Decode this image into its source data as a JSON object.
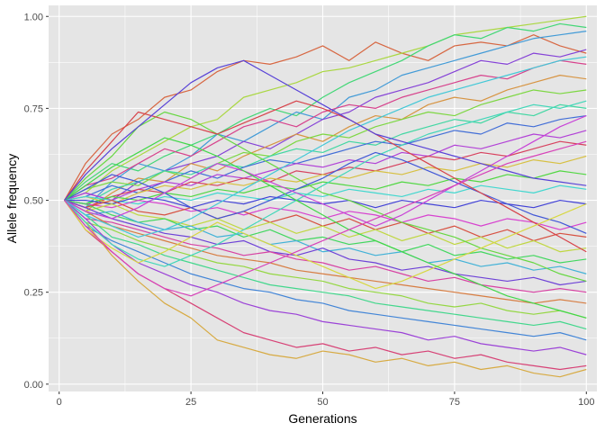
{
  "chart_data": {
    "type": "line",
    "xlabel": "Generations",
    "ylabel": "Allele frequency",
    "xlim": [
      -2,
      102
    ],
    "ylim": [
      -0.02,
      1.03
    ],
    "x_ticks": [
      0,
      25,
      50,
      75,
      100
    ],
    "x_tick_labels": [
      "0",
      "25",
      "50",
      "75",
      "100"
    ],
    "y_ticks": [
      0,
      0.25,
      0.5,
      0.75,
      1
    ],
    "y_tick_labels": [
      "0.00",
      "0.25",
      "0.50",
      "0.75",
      "1.00"
    ],
    "grid": true,
    "legend": "none",
    "x": [
      1,
      5,
      10,
      15,
      20,
      25,
      30,
      35,
      40,
      45,
      50,
      55,
      60,
      65,
      70,
      75,
      80,
      85,
      90,
      95,
      100
    ],
    "panel_background": "#e5e5e5",
    "grid_color": "#ffffff",
    "series": [
      {
        "values": [
          0.5,
          0.6,
          0.68,
          0.72,
          0.78,
          0.8,
          0.85,
          0.88,
          0.87,
          0.89,
          0.92,
          0.88,
          0.93,
          0.9,
          0.88,
          0.92,
          0.93,
          0.92,
          0.95,
          0.92,
          0.9
        ]
      },
      {
        "values": [
          0.5,
          0.52,
          0.58,
          0.62,
          0.66,
          0.7,
          0.72,
          0.78,
          0.8,
          0.82,
          0.85,
          0.86,
          0.88,
          0.9,
          0.92,
          0.95,
          0.96,
          0.97,
          0.98,
          0.99,
          1.0
        ]
      },
      {
        "values": [
          0.5,
          0.55,
          0.6,
          0.58,
          0.62,
          0.65,
          0.68,
          0.72,
          0.75,
          0.73,
          0.78,
          0.82,
          0.85,
          0.88,
          0.92,
          0.95,
          0.94,
          0.97,
          0.96,
          0.98,
          0.97
        ]
      },
      {
        "values": [
          0.5,
          0.48,
          0.55,
          0.6,
          0.58,
          0.62,
          0.68,
          0.66,
          0.7,
          0.74,
          0.72,
          0.78,
          0.8,
          0.84,
          0.86,
          0.88,
          0.9,
          0.92,
          0.94,
          0.95,
          0.96
        ]
      },
      {
        "values": [
          0.5,
          0.52,
          0.5,
          0.55,
          0.58,
          0.6,
          0.62,
          0.66,
          0.64,
          0.68,
          0.72,
          0.74,
          0.78,
          0.8,
          0.82,
          0.85,
          0.88,
          0.87,
          0.9,
          0.89,
          0.91
        ]
      },
      {
        "values": [
          0.5,
          0.54,
          0.56,
          0.6,
          0.64,
          0.62,
          0.66,
          0.7,
          0.72,
          0.7,
          0.74,
          0.76,
          0.75,
          0.78,
          0.8,
          0.82,
          0.84,
          0.83,
          0.86,
          0.88,
          0.87
        ]
      },
      {
        "values": [
          0.5,
          0.47,
          0.52,
          0.56,
          0.55,
          0.6,
          0.58,
          0.62,
          0.65,
          0.68,
          0.66,
          0.7,
          0.73,
          0.72,
          0.76,
          0.78,
          0.77,
          0.8,
          0.82,
          0.84,
          0.83
        ]
      },
      {
        "values": [
          0.5,
          0.53,
          0.55,
          0.54,
          0.58,
          0.56,
          0.6,
          0.63,
          0.62,
          0.66,
          0.68,
          0.67,
          0.7,
          0.72,
          0.74,
          0.73,
          0.76,
          0.78,
          0.8,
          0.79,
          0.8
        ]
      },
      {
        "values": [
          0.5,
          0.49,
          0.53,
          0.55,
          0.58,
          0.57,
          0.6,
          0.59,
          0.62,
          0.64,
          0.63,
          0.66,
          0.65,
          0.68,
          0.7,
          0.72,
          0.71,
          0.74,
          0.73,
          0.76,
          0.75
        ]
      },
      {
        "values": [
          0.5,
          0.51,
          0.54,
          0.52,
          0.55,
          0.58,
          0.56,
          0.59,
          0.61,
          0.6,
          0.62,
          0.64,
          0.66,
          0.65,
          0.67,
          0.69,
          0.68,
          0.71,
          0.7,
          0.72,
          0.73
        ]
      },
      {
        "values": [
          0.5,
          0.52,
          0.5,
          0.53,
          0.55,
          0.54,
          0.57,
          0.56,
          0.58,
          0.6,
          0.59,
          0.61,
          0.6,
          0.63,
          0.62,
          0.65,
          0.64,
          0.66,
          0.68,
          0.67,
          0.69
        ]
      },
      {
        "values": [
          0.5,
          0.48,
          0.51,
          0.53,
          0.52,
          0.55,
          0.54,
          0.56,
          0.55,
          0.58,
          0.57,
          0.59,
          0.58,
          0.6,
          0.62,
          0.61,
          0.63,
          0.62,
          0.64,
          0.66,
          0.65
        ]
      },
      {
        "values": [
          0.5,
          0.51,
          0.49,
          0.52,
          0.54,
          0.53,
          0.55,
          0.54,
          0.56,
          0.55,
          0.57,
          0.56,
          0.58,
          0.57,
          0.59,
          0.58,
          0.6,
          0.59,
          0.61,
          0.6,
          0.62
        ]
      },
      {
        "values": [
          0.5,
          0.49,
          0.51,
          0.5,
          0.52,
          0.51,
          0.53,
          0.52,
          0.54,
          0.53,
          0.55,
          0.54,
          0.53,
          0.55,
          0.54,
          0.56,
          0.55,
          0.57,
          0.56,
          0.58,
          0.57
        ]
      },
      {
        "values": [
          0.5,
          0.51,
          0.5,
          0.49,
          0.51,
          0.5,
          0.52,
          0.51,
          0.5,
          0.52,
          0.51,
          0.53,
          0.52,
          0.51,
          0.53,
          0.52,
          0.54,
          0.53,
          0.52,
          0.54,
          0.53
        ]
      },
      {
        "values": [
          0.5,
          0.5,
          0.49,
          0.51,
          0.5,
          0.48,
          0.5,
          0.49,
          0.51,
          0.5,
          0.49,
          0.5,
          0.48,
          0.5,
          0.49,
          0.48,
          0.5,
          0.49,
          0.48,
          0.5,
          0.49
        ]
      },
      {
        "values": [
          0.5,
          0.49,
          0.48,
          0.5,
          0.49,
          0.47,
          0.48,
          0.46,
          0.48,
          0.47,
          0.45,
          0.47,
          0.46,
          0.44,
          0.46,
          0.45,
          0.43,
          0.45,
          0.44,
          0.42,
          0.44
        ]
      },
      {
        "values": [
          0.5,
          0.48,
          0.5,
          0.47,
          0.46,
          0.48,
          0.45,
          0.47,
          0.44,
          0.46,
          0.43,
          0.45,
          0.42,
          0.44,
          0.41,
          0.43,
          0.4,
          0.42,
          0.39,
          0.41,
          0.4
        ]
      },
      {
        "values": [
          0.5,
          0.47,
          0.49,
          0.46,
          0.45,
          0.43,
          0.45,
          0.42,
          0.44,
          0.41,
          0.43,
          0.4,
          0.42,
          0.39,
          0.41,
          0.38,
          0.4,
          0.37,
          0.39,
          0.36,
          0.37
        ]
      },
      {
        "values": [
          0.5,
          0.49,
          0.46,
          0.44,
          0.45,
          0.42,
          0.43,
          0.4,
          0.42,
          0.39,
          0.4,
          0.38,
          0.39,
          0.36,
          0.38,
          0.35,
          0.36,
          0.34,
          0.35,
          0.33,
          0.34
        ]
      },
      {
        "values": [
          0.5,
          0.46,
          0.47,
          0.44,
          0.42,
          0.43,
          0.4,
          0.41,
          0.38,
          0.39,
          0.36,
          0.37,
          0.35,
          0.36,
          0.33,
          0.34,
          0.32,
          0.33,
          0.31,
          0.32,
          0.3
        ]
      },
      {
        "values": [
          0.5,
          0.48,
          0.45,
          0.43,
          0.41,
          0.4,
          0.38,
          0.39,
          0.36,
          0.35,
          0.37,
          0.34,
          0.33,
          0.31,
          0.32,
          0.3,
          0.29,
          0.28,
          0.29,
          0.27,
          0.28
        ]
      },
      {
        "values": [
          0.5,
          0.45,
          0.44,
          0.42,
          0.4,
          0.38,
          0.37,
          0.35,
          0.36,
          0.34,
          0.33,
          0.31,
          0.32,
          0.3,
          0.28,
          0.29,
          0.27,
          0.26,
          0.25,
          0.26,
          0.25
        ]
      },
      {
        "values": [
          0.5,
          0.47,
          0.43,
          0.41,
          0.39,
          0.37,
          0.35,
          0.34,
          0.33,
          0.31,
          0.3,
          0.29,
          0.28,
          0.27,
          0.26,
          0.25,
          0.24,
          0.23,
          0.22,
          0.23,
          0.22
        ]
      },
      {
        "values": [
          0.5,
          0.44,
          0.42,
          0.39,
          0.37,
          0.35,
          0.33,
          0.32,
          0.3,
          0.29,
          0.28,
          0.26,
          0.25,
          0.24,
          0.22,
          0.21,
          0.22,
          0.2,
          0.19,
          0.2,
          0.18
        ]
      },
      {
        "values": [
          0.5,
          0.46,
          0.4,
          0.38,
          0.35,
          0.33,
          0.31,
          0.29,
          0.27,
          0.26,
          0.25,
          0.24,
          0.22,
          0.21,
          0.2,
          0.19,
          0.18,
          0.17,
          0.16,
          0.17,
          0.15
        ]
      },
      {
        "values": [
          0.5,
          0.43,
          0.39,
          0.36,
          0.33,
          0.3,
          0.28,
          0.26,
          0.25,
          0.23,
          0.22,
          0.2,
          0.19,
          0.18,
          0.17,
          0.16,
          0.15,
          0.14,
          0.13,
          0.14,
          0.12
        ]
      },
      {
        "values": [
          0.5,
          0.45,
          0.38,
          0.33,
          0.3,
          0.27,
          0.25,
          0.22,
          0.2,
          0.19,
          0.17,
          0.16,
          0.15,
          0.14,
          0.12,
          0.13,
          0.11,
          0.1,
          0.09,
          0.1,
          0.08
        ]
      },
      {
        "values": [
          0.5,
          0.42,
          0.36,
          0.3,
          0.26,
          0.22,
          0.18,
          0.14,
          0.12,
          0.1,
          0.11,
          0.09,
          0.1,
          0.08,
          0.09,
          0.07,
          0.08,
          0.06,
          0.05,
          0.04,
          0.05
        ]
      },
      {
        "values": [
          0.5,
          0.44,
          0.35,
          0.28,
          0.22,
          0.18,
          0.12,
          0.1,
          0.08,
          0.07,
          0.09,
          0.08,
          0.06,
          0.07,
          0.05,
          0.06,
          0.04,
          0.05,
          0.03,
          0.02,
          0.04
        ]
      },
      {
        "values": [
          0.5,
          0.56,
          0.62,
          0.7,
          0.74,
          0.72,
          0.68,
          0.64,
          0.6,
          0.56,
          0.52,
          0.5,
          0.47,
          0.44,
          0.42,
          0.4,
          0.37,
          0.35,
          0.33,
          0.3,
          0.28
        ]
      },
      {
        "values": [
          0.5,
          0.44,
          0.38,
          0.34,
          0.32,
          0.35,
          0.38,
          0.42,
          0.46,
          0.5,
          0.54,
          0.58,
          0.62,
          0.65,
          0.68,
          0.7,
          0.72,
          0.74,
          0.76,
          0.75,
          0.77
        ]
      },
      {
        "values": [
          0.5,
          0.53,
          0.57,
          0.55,
          0.52,
          0.48,
          0.45,
          0.47,
          0.5,
          0.53,
          0.56,
          0.6,
          0.63,
          0.61,
          0.58,
          0.55,
          0.52,
          0.49,
          0.46,
          0.44,
          0.41
        ]
      },
      {
        "values": [
          0.5,
          0.47,
          0.45,
          0.48,
          0.52,
          0.56,
          0.6,
          0.58,
          0.55,
          0.52,
          0.49,
          0.46,
          0.43,
          0.46,
          0.5,
          0.54,
          0.58,
          0.62,
          0.66,
          0.7,
          0.73
        ]
      },
      {
        "values": [
          0.5,
          0.58,
          0.66,
          0.74,
          0.72,
          0.7,
          0.68,
          0.71,
          0.74,
          0.77,
          0.75,
          0.72,
          0.68,
          0.64,
          0.6,
          0.56,
          0.52,
          0.48,
          0.44,
          0.4,
          0.36
        ]
      },
      {
        "values": [
          0.5,
          0.42,
          0.37,
          0.33,
          0.36,
          0.4,
          0.44,
          0.41,
          0.38,
          0.35,
          0.32,
          0.29,
          0.26,
          0.28,
          0.31,
          0.34,
          0.37,
          0.4,
          0.43,
          0.46,
          0.49
        ]
      },
      {
        "values": [
          0.5,
          0.54,
          0.59,
          0.63,
          0.67,
          0.65,
          0.62,
          0.58,
          0.54,
          0.5,
          0.46,
          0.42,
          0.39,
          0.36,
          0.33,
          0.3,
          0.27,
          0.24,
          0.22,
          0.2,
          0.18
        ]
      },
      {
        "values": [
          0.5,
          0.46,
          0.43,
          0.4,
          0.42,
          0.45,
          0.49,
          0.53,
          0.57,
          0.61,
          0.65,
          0.69,
          0.72,
          0.75,
          0.78,
          0.8,
          0.82,
          0.84,
          0.86,
          0.88,
          0.89
        ]
      },
      {
        "values": [
          0.5,
          0.57,
          0.64,
          0.7,
          0.76,
          0.82,
          0.86,
          0.88,
          0.84,
          0.8,
          0.76,
          0.72,
          0.68,
          0.66,
          0.64,
          0.62,
          0.6,
          0.58,
          0.56,
          0.55,
          0.54
        ]
      },
      {
        "values": [
          0.5,
          0.43,
          0.36,
          0.3,
          0.26,
          0.24,
          0.27,
          0.3,
          0.33,
          0.36,
          0.39,
          0.42,
          0.45,
          0.48,
          0.51,
          0.54,
          0.57,
          0.6,
          0.62,
          0.64,
          0.66
        ]
      }
    ]
  }
}
